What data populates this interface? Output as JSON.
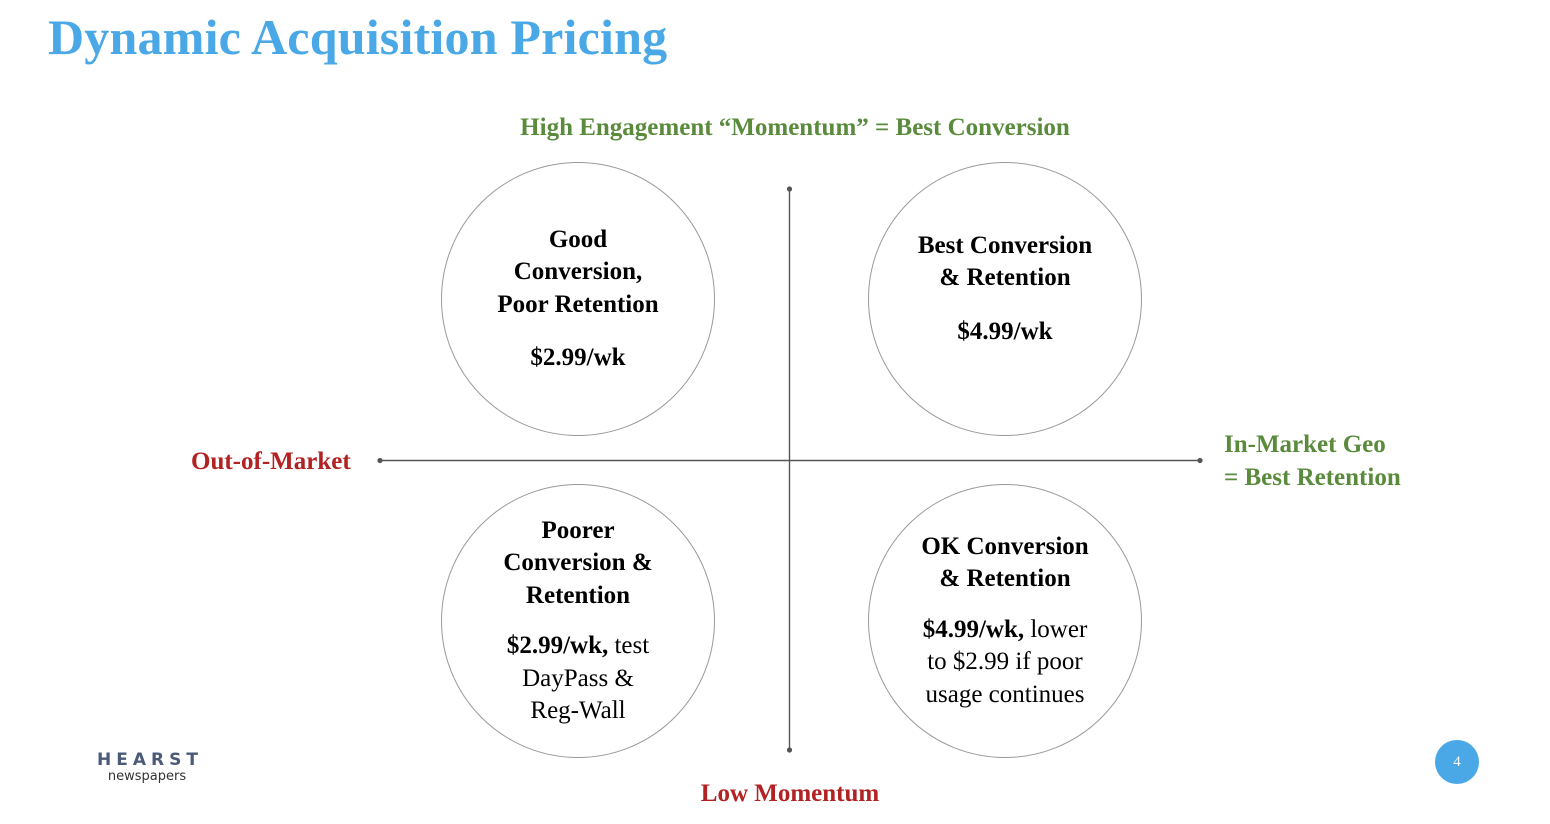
{
  "title": "Dynamic Acquisition Pricing",
  "colors": {
    "title": "#4aa8e6",
    "positive": "#5a8a3c",
    "negative": "#b22222",
    "axis": "#555555",
    "circle_border": "#9a9a9a",
    "badge": "#4aa8e6"
  },
  "axes": {
    "top": "High Engagement “Momentum” = Best Conversion",
    "bottom": "Low Momentum",
    "left": "Out-of-Market",
    "right": [
      "In-Market Geo",
      "= Best Retention"
    ]
  },
  "quadrants": {
    "top_left": {
      "heading": [
        "Good",
        "Conversion,",
        "Poor Retention"
      ],
      "price_bold": "$2.99/wk",
      "price_rest": ""
    },
    "top_right": {
      "heading": [
        "Best Conversion",
        "& Retention"
      ],
      "price_bold": "$4.99/wk",
      "price_rest": ""
    },
    "bottom_left": {
      "heading": [
        "Poorer",
        "Conversion &",
        "Retention"
      ],
      "price_bold": "$2.99/wk,",
      "price_rest_lines": [
        " test",
        "DayPass &",
        "Reg-Wall"
      ]
    },
    "bottom_right": {
      "heading": [
        "OK Conversion",
        "& Retention"
      ],
      "price_bold": "$4.99/wk,",
      "price_rest_lines": [
        " lower",
        "to $2.99 if poor",
        "usage continues"
      ]
    }
  },
  "logo": {
    "name": "HEARST",
    "sub": "newspapers"
  },
  "page_number": "4"
}
